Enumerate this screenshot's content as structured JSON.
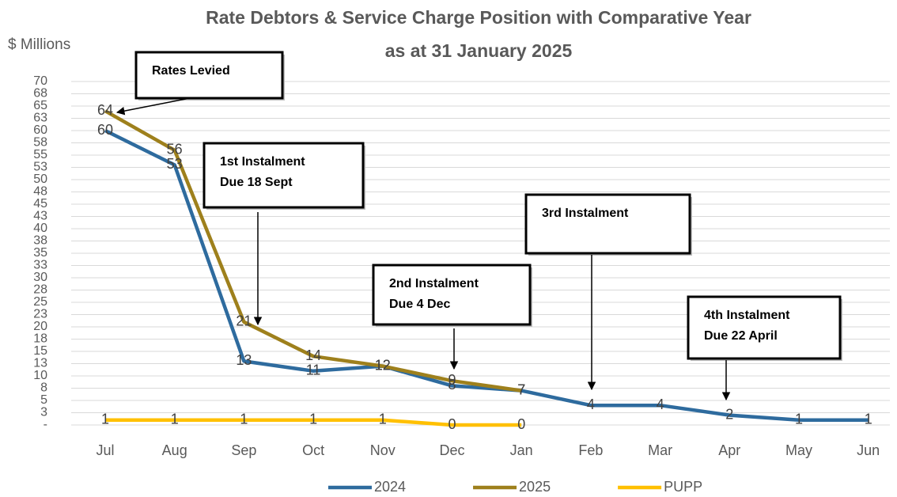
{
  "chart_data": {
    "type": "line",
    "title": [
      "Rate Debtors & Service Charge Position with Comparative Year",
      "as at 31 January 2025"
    ],
    "y_label": "$ Millions",
    "categories": [
      "Jul",
      "Aug",
      "Sep",
      "Oct",
      "Nov",
      "Dec",
      "Jan",
      "Feb",
      "Mar",
      "Apr",
      "May",
      "Jun"
    ],
    "series": [
      {
        "name": "2024",
        "color": "#2e6b9e",
        "values": [
          60,
          53,
          13,
          11,
          12,
          8,
          7,
          4,
          4,
          2,
          1,
          1
        ]
      },
      {
        "name": "2025",
        "color": "#9e801c",
        "values": [
          64,
          56,
          21,
          14,
          12,
          9,
          7,
          null,
          null,
          null,
          null,
          null
        ]
      },
      {
        "name": "PUPP",
        "color": "#ffc000",
        "values": [
          1,
          1,
          1,
          1,
          1,
          0,
          0,
          null,
          null,
          null,
          null,
          null
        ]
      }
    ],
    "ylim": [
      0,
      70
    ],
    "yticks": [
      {
        "value": 0,
        "label": "-"
      },
      {
        "value": 2.5,
        "label": "3"
      },
      5,
      {
        "value": 7.5,
        "label": "8"
      },
      10,
      {
        "value": 12.5,
        "label": "13"
      },
      15,
      {
        "value": 17.5,
        "label": "18"
      },
      20,
      {
        "value": 22.5,
        "label": "23"
      },
      25,
      {
        "value": 27.5,
        "label": "28"
      },
      30,
      {
        "value": 32.5,
        "label": "33"
      },
      35,
      {
        "value": 37.5,
        "label": "38"
      },
      40,
      {
        "value": 42.5,
        "label": "43"
      },
      45,
      {
        "value": 47.5,
        "label": "48"
      },
      50,
      {
        "value": 52.5,
        "label": "53"
      },
      55,
      {
        "value": 57.5,
        "label": "58"
      },
      60,
      {
        "value": 62.5,
        "label": "63"
      },
      65,
      {
        "value": 67.5,
        "label": "68"
      },
      70
    ],
    "grid": true,
    "legend": "bottom",
    "annotations": [
      {
        "lines": [
          "Rates Levied"
        ]
      },
      {
        "lines": [
          "1st Instalment",
          "Due 18 Sept"
        ]
      },
      {
        "lines": [
          "2nd Instalment",
          "Due 4 Dec"
        ]
      },
      {
        "lines": [
          "3rd Instalment"
        ]
      },
      {
        "lines": [
          "4th Instalment",
          "Due 22 April"
        ]
      }
    ]
  }
}
